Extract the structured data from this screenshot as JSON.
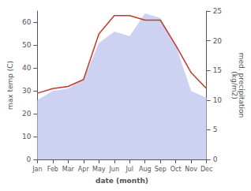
{
  "chart_data": {
    "type": "line",
    "xlabel": "date (month)",
    "ylabel": "max temp (C)",
    "y2label": "med. precipitation\n(kg/m2)",
    "categories": [
      "Jan",
      "Feb",
      "Mar",
      "Apr",
      "May",
      "Jun",
      "Jul",
      "Aug",
      "Sep",
      "Oct",
      "Nov",
      "Dec"
    ],
    "series": [
      {
        "type": "area",
        "color": "#c5caf0",
        "values": [
          26,
          30,
          31,
          35,
          51,
          56,
          54,
          64,
          62,
          50,
          30,
          27
        ]
      },
      {
        "type": "line",
        "color": "#c0392b",
        "values": [
          29,
          31,
          32,
          35,
          55,
          63,
          63,
          61,
          61,
          50,
          38,
          31
        ]
      }
    ],
    "ylim": [
      0,
      65
    ],
    "yticks": [
      0,
      10,
      20,
      30,
      40,
      50,
      60
    ],
    "y2lim": [
      0,
      25
    ],
    "y2ticks": [
      0,
      5,
      10,
      15,
      20,
      25
    ],
    "grid": false
  }
}
